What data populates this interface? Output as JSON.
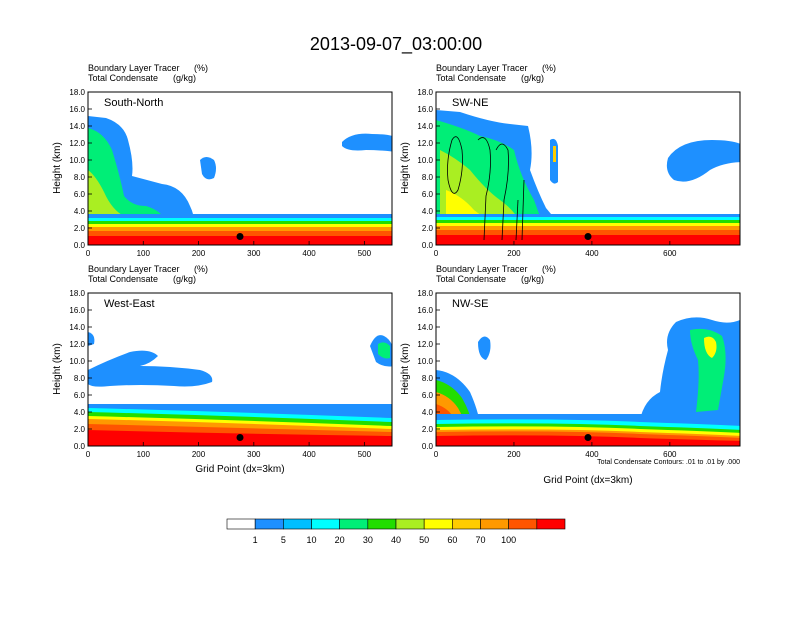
{
  "title": "2013-09-07_03:00:00",
  "colorbar": {
    "labels": [
      "1",
      "5",
      "10",
      "20",
      "30",
      "40",
      "50",
      "60",
      "70",
      "100"
    ],
    "colors": [
      "#ffffff",
      "#1e90ff",
      "#00bfff",
      "#00ffff",
      "#00ee77",
      "#22dd00",
      "#aaee22",
      "#ffff00",
      "#ffcc00",
      "#ff9900",
      "#ff5500",
      "#ff0000"
    ]
  },
  "footnote": "Total Condensate Contours: .01 to .01 by .000",
  "chart_data": [
    {
      "type": "heatmap",
      "panel_label": "South-North",
      "subtitle1_left": "Boundary Layer Tracer",
      "subtitle1_right": "(%)",
      "subtitle2_left": "Total Condensate",
      "subtitle2_right": "(g/kg)",
      "ylabel": "Height (km)",
      "xlabel": "",
      "xlim": [
        0,
        550
      ],
      "ylim": [
        0,
        18
      ],
      "xticks": [
        "0",
        "100",
        "200",
        "300",
        "400",
        "500"
      ],
      "yticks": [
        "0.0",
        "2.0",
        "4.0",
        "6.0",
        "8.0",
        "10.0",
        "12.0",
        "14.0",
        "16.0",
        "18.0"
      ],
      "marker_x": 275,
      "marker_y": 1.0
    },
    {
      "type": "heatmap",
      "panel_label": "SW-NE",
      "subtitle1_left": "Boundary Layer Tracer",
      "subtitle1_right": "(%)",
      "subtitle2_left": "Total Condensate",
      "subtitle2_right": "(g/kg)",
      "ylabel": "Height (km)",
      "xlabel": "",
      "xlim": [
        0,
        780
      ],
      "ylim": [
        0,
        18
      ],
      "xticks": [
        "0",
        "200",
        "400",
        "600"
      ],
      "yticks": [
        "0.0",
        "2.0",
        "4.0",
        "6.0",
        "8.0",
        "10.0",
        "12.0",
        "14.0",
        "16.0",
        "18.0"
      ],
      "marker_x": 390,
      "marker_y": 1.0
    },
    {
      "type": "heatmap",
      "panel_label": "West-East",
      "subtitle1_left": "Boundary Layer Tracer",
      "subtitle1_right": "(%)",
      "subtitle2_left": "Total Condensate",
      "subtitle2_right": "(g/kg)",
      "ylabel": "Height (km)",
      "xlabel": "Grid Point (dx=3km)",
      "xlim": [
        0,
        550
      ],
      "ylim": [
        0,
        18
      ],
      "xticks": [
        "0",
        "100",
        "200",
        "300",
        "400",
        "500"
      ],
      "yticks": [
        "0.0",
        "2.0",
        "4.0",
        "6.0",
        "8.0",
        "10.0",
        "12.0",
        "14.0",
        "16.0",
        "18.0"
      ],
      "marker_x": 275,
      "marker_y": 1.0
    },
    {
      "type": "heatmap",
      "panel_label": "NW-SE",
      "subtitle1_left": "Boundary Layer Tracer",
      "subtitle1_right": "(%)",
      "subtitle2_left": "Total Condensate",
      "subtitle2_right": "(g/kg)",
      "ylabel": "Height (km)",
      "xlabel": "Grid Point (dx=3km)",
      "xlim": [
        0,
        780
      ],
      "ylim": [
        0,
        18
      ],
      "xticks": [
        "0",
        "200",
        "400",
        "600"
      ],
      "yticks": [
        "0.0",
        "2.0",
        "4.0",
        "6.0",
        "8.0",
        "10.0",
        "12.0",
        "14.0",
        "16.0",
        "18.0"
      ],
      "marker_x": 390,
      "marker_y": 1.0
    }
  ]
}
